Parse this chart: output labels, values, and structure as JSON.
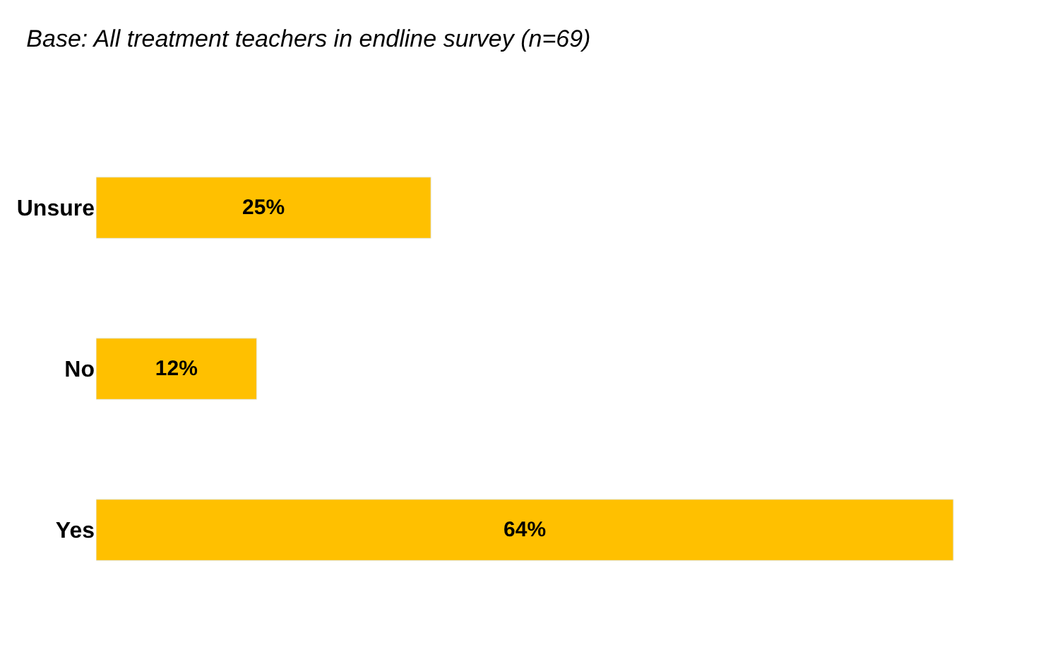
{
  "chart_data": {
    "type": "bar",
    "orientation": "horizontal",
    "title": "Base: All treatment teachers in endline survey (n=69)",
    "categories": [
      "Unsure",
      "No",
      "Yes"
    ],
    "values": [
      25,
      12,
      64
    ],
    "value_labels": [
      "25%",
      "12%",
      "64%"
    ],
    "color": "#ffc000"
  }
}
